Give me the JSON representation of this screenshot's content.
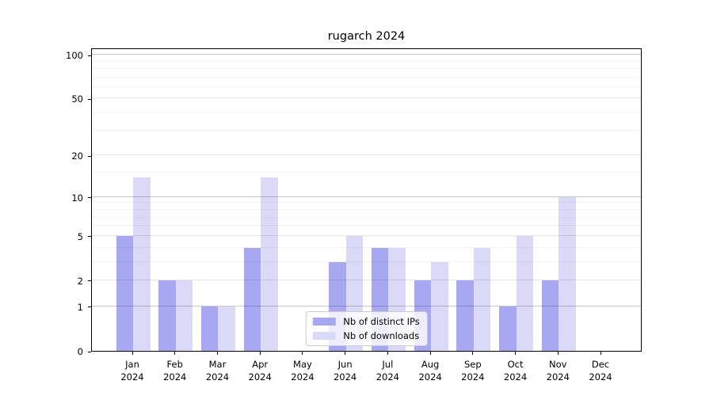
{
  "title": "rugarch 2024",
  "chart_data": {
    "type": "bar",
    "title": "rugarch 2024",
    "categories": [
      "Jan",
      "Feb",
      "Mar",
      "Apr",
      "May",
      "Jun",
      "Jul",
      "Aug",
      "Sep",
      "Oct",
      "Nov",
      "Dec"
    ],
    "year_label": "2024",
    "series": [
      {
        "name": "Nb of distinct IPs",
        "color": "#a8a8f2",
        "values": [
          5,
          2,
          1,
          4,
          0,
          3,
          4,
          2,
          2,
          1,
          2,
          0
        ]
      },
      {
        "name": "Nb of downloads",
        "color": "#dadaf8",
        "values": [
          14,
          2,
          1,
          14,
          0,
          5,
          4,
          3,
          4,
          5,
          10,
          0
        ]
      }
    ],
    "xlabel": "",
    "ylabel": "",
    "y_scale": "log1p",
    "y_major_ticks": [
      0,
      1,
      2,
      5,
      10,
      20,
      50,
      100
    ],
    "y_decade_gridlines": [
      1,
      10,
      100
    ],
    "y_mid_gridlines": [
      2,
      5,
      20,
      50
    ],
    "y_minor_gridlines": [
      3,
      4,
      6,
      7,
      8,
      9,
      15,
      30,
      40,
      60,
      70,
      80,
      90
    ],
    "ylim": [
      0,
      112
    ],
    "grid": true,
    "legend_position": "lower center",
    "axis_color": "#000000",
    "background_color": "#ffffff"
  }
}
